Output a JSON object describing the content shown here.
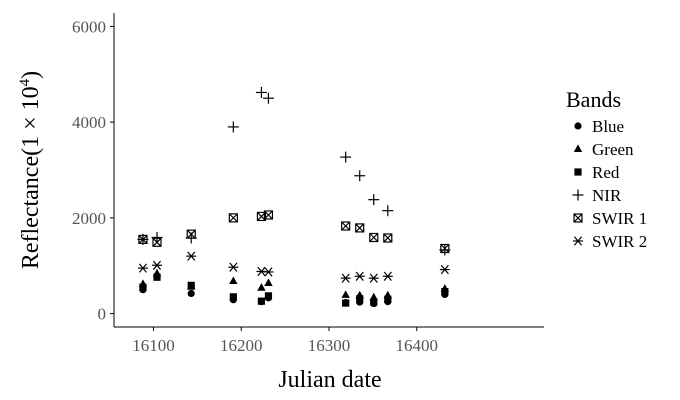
{
  "chart_data": {
    "type": "scatter",
    "title": "",
    "xlabel": "Julian date",
    "ylabel_main": "Reflectance",
    "ylabel_scale": "(1 × 10",
    "ylabel_exp": "4",
    "ylabel_close": ")",
    "xlim": [
      16055,
      16545
    ],
    "ylim": [
      -280,
      6280
    ],
    "x_ticks": [
      16100,
      16200,
      16300,
      16400
    ],
    "x_tick_labels": [
      "16100",
      "16200",
      "16300",
      "16400"
    ],
    "y_ticks": [
      0,
      2000,
      4000,
      6000
    ],
    "y_tick_labels": [
      "0",
      "2000",
      "4000",
      "6000"
    ],
    "grid": false,
    "legend": {
      "title": "Bands",
      "position": "right"
    },
    "series": [
      {
        "name": "Blue",
        "marker": "circle",
        "points": [
          [
            16088,
            500
          ],
          [
            16104,
            790
          ],
          [
            16143,
            420
          ],
          [
            16191,
            290
          ],
          [
            16223,
            250
          ],
          [
            16231,
            330
          ],
          [
            16319,
            230
          ],
          [
            16335,
            240
          ],
          [
            16351,
            210
          ],
          [
            16367,
            250
          ],
          [
            16432,
            400
          ]
        ]
      },
      {
        "name": "Green",
        "marker": "triangle",
        "points": [
          [
            16088,
            620
          ],
          [
            16104,
            840
          ],
          [
            16143,
            560
          ],
          [
            16191,
            680
          ],
          [
            16223,
            540
          ],
          [
            16231,
            640
          ],
          [
            16319,
            390
          ],
          [
            16335,
            380
          ],
          [
            16351,
            340
          ],
          [
            16367,
            380
          ],
          [
            16432,
            520
          ]
        ]
      },
      {
        "name": "Red",
        "marker": "square",
        "points": [
          [
            16088,
            550
          ],
          [
            16104,
            760
          ],
          [
            16143,
            590
          ],
          [
            16191,
            350
          ],
          [
            16223,
            260
          ],
          [
            16231,
            370
          ],
          [
            16319,
            220
          ],
          [
            16335,
            310
          ],
          [
            16351,
            240
          ],
          [
            16367,
            300
          ],
          [
            16432,
            460
          ]
        ]
      },
      {
        "name": "NIR",
        "marker": "plus",
        "points": [
          [
            16088,
            1550
          ],
          [
            16104,
            1590
          ],
          [
            16143,
            1580
          ],
          [
            16191,
            3900
          ],
          [
            16223,
            4620
          ],
          [
            16231,
            4500
          ],
          [
            16319,
            3270
          ],
          [
            16335,
            2880
          ],
          [
            16351,
            2380
          ],
          [
            16367,
            2150
          ],
          [
            16432,
            1330
          ]
        ]
      },
      {
        "name": "SWIR 1",
        "marker": "boxcross",
        "points": [
          [
            16088,
            1550
          ],
          [
            16104,
            1490
          ],
          [
            16143,
            1660
          ],
          [
            16191,
            2000
          ],
          [
            16223,
            2030
          ],
          [
            16231,
            2060
          ],
          [
            16319,
            1830
          ],
          [
            16335,
            1790
          ],
          [
            16351,
            1590
          ],
          [
            16367,
            1580
          ],
          [
            16432,
            1360
          ]
        ]
      },
      {
        "name": "SWIR 2",
        "marker": "asterisk",
        "points": [
          [
            16088,
            950
          ],
          [
            16104,
            1010
          ],
          [
            16143,
            1200
          ],
          [
            16191,
            970
          ],
          [
            16223,
            880
          ],
          [
            16231,
            870
          ],
          [
            16319,
            740
          ],
          [
            16335,
            780
          ],
          [
            16351,
            740
          ],
          [
            16367,
            780
          ],
          [
            16432,
            920
          ]
        ]
      }
    ]
  }
}
